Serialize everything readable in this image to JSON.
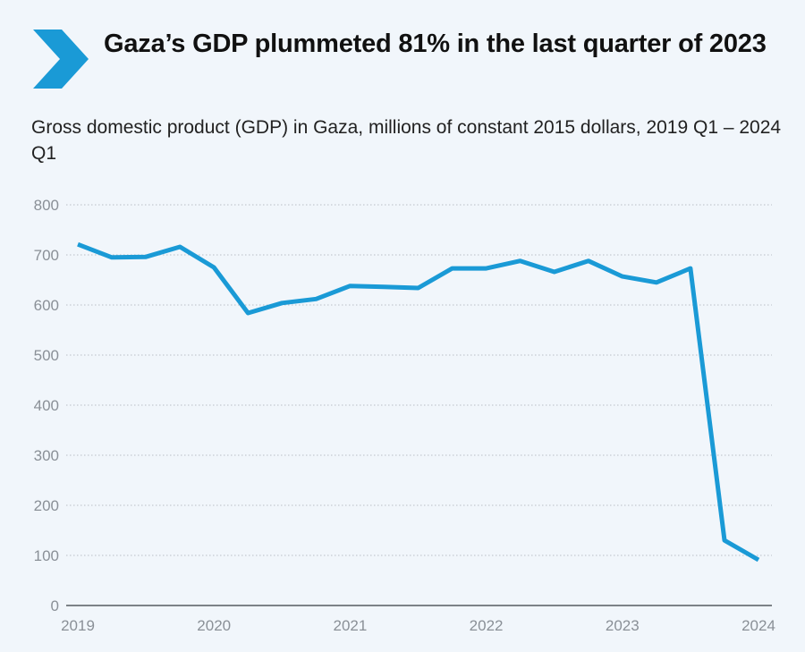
{
  "header": {
    "title": "Gaza’s GDP plummeted 81% in the last quarter of 2023",
    "subtitle": "Gross domestic product (GDP) in Gaza, millions of constant 2015 dollars, 2019 Q1 – 2024 Q1",
    "icon": "chevron-right-icon",
    "accent_color": "#1a9ad6"
  },
  "chart_data": {
    "type": "line",
    "title": "Gaza’s GDP plummeted 81% in the last quarter of 2023",
    "subtitle": "Gross domestic product (GDP) in Gaza, millions of constant 2015 dollars, 2019 Q1 – 2024 Q1",
    "xlabel": "",
    "ylabel": "",
    "ylim": [
      0,
      800
    ],
    "yticks": [
      0,
      100,
      200,
      300,
      400,
      500,
      600,
      700,
      800
    ],
    "xtick_labels": [
      "2019",
      "2020",
      "2021",
      "2022",
      "2023",
      "2024"
    ],
    "grid": true,
    "legend": "none",
    "x": [
      "2019 Q1",
      "2019 Q2",
      "2019 Q3",
      "2019 Q4",
      "2020 Q1",
      "2020 Q2",
      "2020 Q3",
      "2020 Q4",
      "2021 Q1",
      "2021 Q2",
      "2021 Q3",
      "2021 Q4",
      "2022 Q1",
      "2022 Q2",
      "2022 Q3",
      "2022 Q4",
      "2023 Q1",
      "2023 Q2",
      "2023 Q3",
      "2023 Q4",
      "2024 Q1"
    ],
    "series": [
      {
        "name": "GDP",
        "color": "#1a9ad6",
        "values": [
          721,
          695,
          696,
          716,
          675,
          584,
          604,
          612,
          638,
          636,
          634,
          673,
          673,
          688,
          666,
          688,
          657,
          645,
          673,
          130,
          91
        ]
      }
    ]
  }
}
